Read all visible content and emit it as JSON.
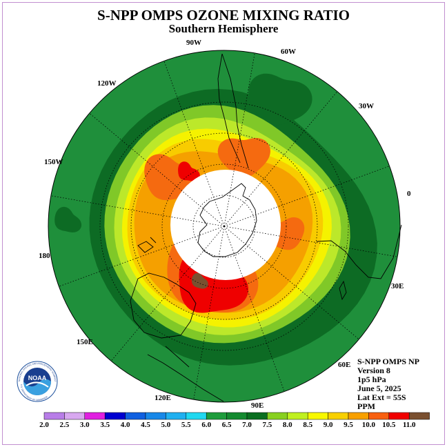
{
  "title": "S-NPP OMPS OZONE MIXING RATIO",
  "subtitle": "Southern Hemisphere",
  "longitude_labels": [
    "0",
    "30W",
    "60W",
    "90W",
    "120W",
    "150W",
    "180",
    "150E",
    "120E",
    "90E",
    "60E",
    "30E"
  ],
  "info": {
    "line1": "S-NPP OMPS NP",
    "line2": "Version 8",
    "line3": "1p5 hPa",
    "line4": "June 5, 2025",
    "line5": "Lat Ext = 55S",
    "line6": "PPM"
  },
  "logo_text": "NOAA",
  "logo_ring_text": "NATIONAL OCEANIC AND ATMOSPHERIC ADMINISTRATION",
  "logo_ring_text2": "U.S. DEPARTMENT OF COMMERCE",
  "colorbar": {
    "labels": [
      "2.0",
      "2.5",
      "3.0",
      "3.5",
      "4.0",
      "4.5",
      "5.0",
      "5.5",
      "6.0",
      "6.5",
      "7.0",
      "7.5",
      "8.0",
      "8.5",
      "9.0",
      "9.5",
      "10.0",
      "10.5",
      "11.0"
    ],
    "colors": [
      "#b87de8",
      "#d8a8f0",
      "#e020e0",
      "#0000d0",
      "#1060e0",
      "#1888e8",
      "#20b0f0",
      "#20d8f0",
      "#1e9c3c",
      "#148a30",
      "#0a6e20",
      "#88d020",
      "#c0f020",
      "#f8f800",
      "#f8d000",
      "#f8a000",
      "#f86010",
      "#f00000",
      "#7a5030"
    ]
  },
  "map_colors": {
    "outer": "#1f8f3b",
    "dark": "#0d6b24",
    "ring1": "#80c828",
    "ring2": "#bce82a",
    "ring3": "#f5f200",
    "ring4": "#f8cc00",
    "ring5": "#f5a000",
    "ring6": "#f56a10",
    "ring7": "#ef0000",
    "brown": "#7a5030",
    "hole": "#ffffff"
  }
}
